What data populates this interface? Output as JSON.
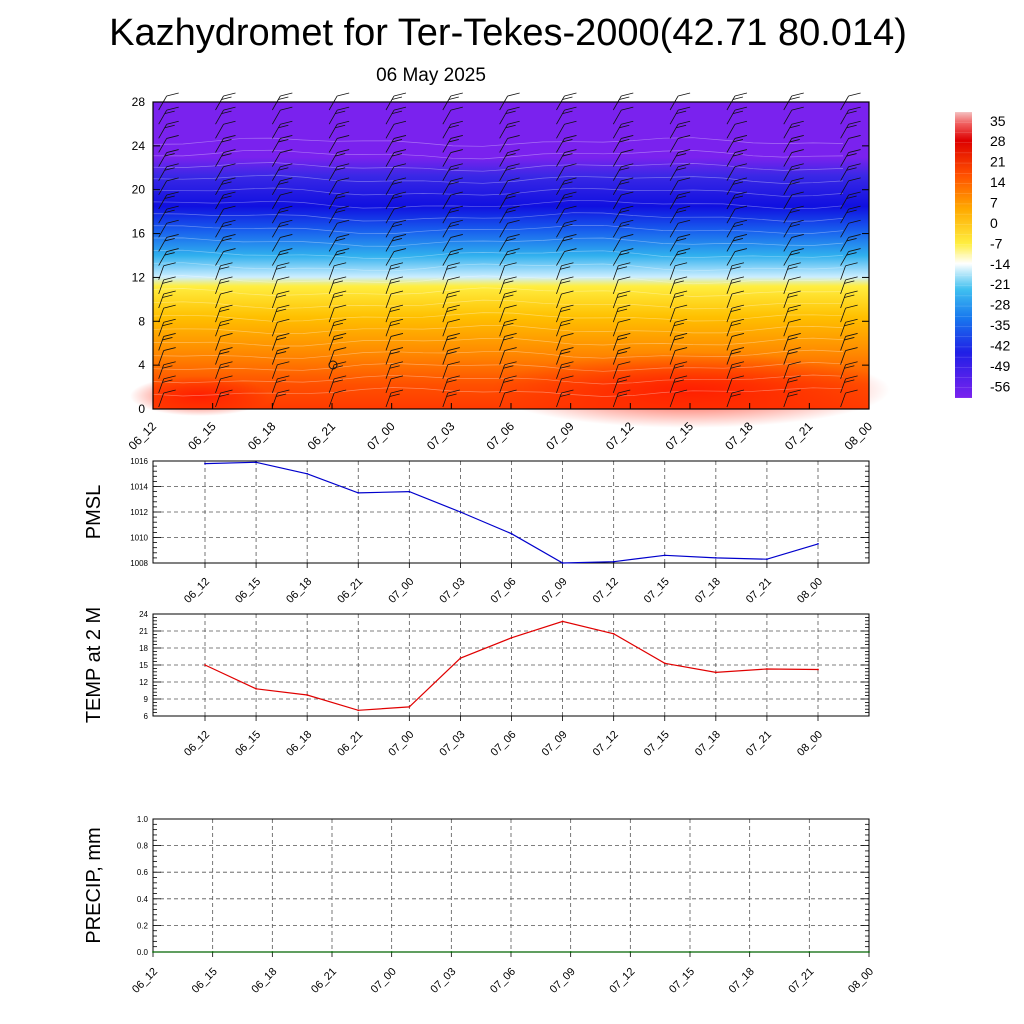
{
  "title": "Kazhydromet for Ter-Tekes-2000(42.71 80.014)",
  "date": "06 May 2025",
  "colors": {
    "pmsl_line": "#0000cc",
    "temp_line": "#e00000",
    "precip_line": "#006400",
    "grid": "#555555"
  },
  "chart_data": [
    {
      "id": "cross-section",
      "type": "heatmap",
      "x_ticks": [
        "06_12",
        "06_15",
        "06_18",
        "06_21",
        "07_00",
        "07_03",
        "07_06",
        "07_09",
        "07_12",
        "07_15",
        "07_18",
        "07_21",
        "08_00"
      ],
      "y_ticks": [
        "0",
        "4",
        "8",
        "12",
        "16",
        "20",
        "24",
        "28"
      ],
      "ylim": [
        0,
        28
      ],
      "colorbar_labels": [
        "35",
        "28",
        "21",
        "14",
        "7",
        "0",
        "-7",
        "-14",
        "-21",
        "-28",
        "-35",
        "-42",
        "-49",
        "-56"
      ],
      "colorbar_range": [
        -60,
        38
      ],
      "wind_barbs": true
    },
    {
      "id": "pmsl",
      "type": "line",
      "ylabel": "PMSL",
      "categories": [
        "06_12",
        "06_15",
        "06_18",
        "06_21",
        "07_00",
        "07_03",
        "07_06",
        "07_09",
        "07_12",
        "07_15",
        "07_18",
        "07_21",
        "08_00"
      ],
      "y_ticks": [
        "1008",
        "1010",
        "1012",
        "1014",
        "1016"
      ],
      "ylim": [
        1008,
        1016
      ],
      "values": [
        1015.8,
        1015.9,
        1015.0,
        1013.5,
        1013.6,
        1012.0,
        1010.3,
        1008.0,
        1008.1,
        1008.6,
        1008.4,
        1008.3,
        1009.5
      ]
    },
    {
      "id": "temp",
      "type": "line",
      "ylabel": "TEMP at 2 M",
      "categories": [
        "06_12",
        "06_15",
        "06_18",
        "06_21",
        "07_00",
        "07_03",
        "07_06",
        "07_09",
        "07_12",
        "07_15",
        "07_18",
        "07_21",
        "08_00"
      ],
      "y_ticks": [
        "6",
        "9",
        "12",
        "15",
        "18",
        "21",
        "24"
      ],
      "ylim": [
        6,
        24
      ],
      "values": [
        15.0,
        10.8,
        9.7,
        7.0,
        7.6,
        16.2,
        19.8,
        22.7,
        20.5,
        15.3,
        13.7,
        14.3,
        14.2
      ]
    },
    {
      "id": "precip",
      "type": "line",
      "ylabel": "PRECIP, mm",
      "categories": [
        "06_12",
        "06_15",
        "06_18",
        "06_21",
        "07_00",
        "07_03",
        "07_06",
        "07_09",
        "07_12",
        "07_15",
        "07_18",
        "07_21",
        "08_00"
      ],
      "y_ticks": [
        "0.0",
        "0.2",
        "0.4",
        "0.6",
        "0.8",
        "1.0"
      ],
      "ylim": [
        0,
        1
      ],
      "values": [
        0,
        0,
        0,
        0,
        0,
        0,
        0,
        0,
        0,
        0,
        0,
        0,
        0
      ]
    }
  ]
}
